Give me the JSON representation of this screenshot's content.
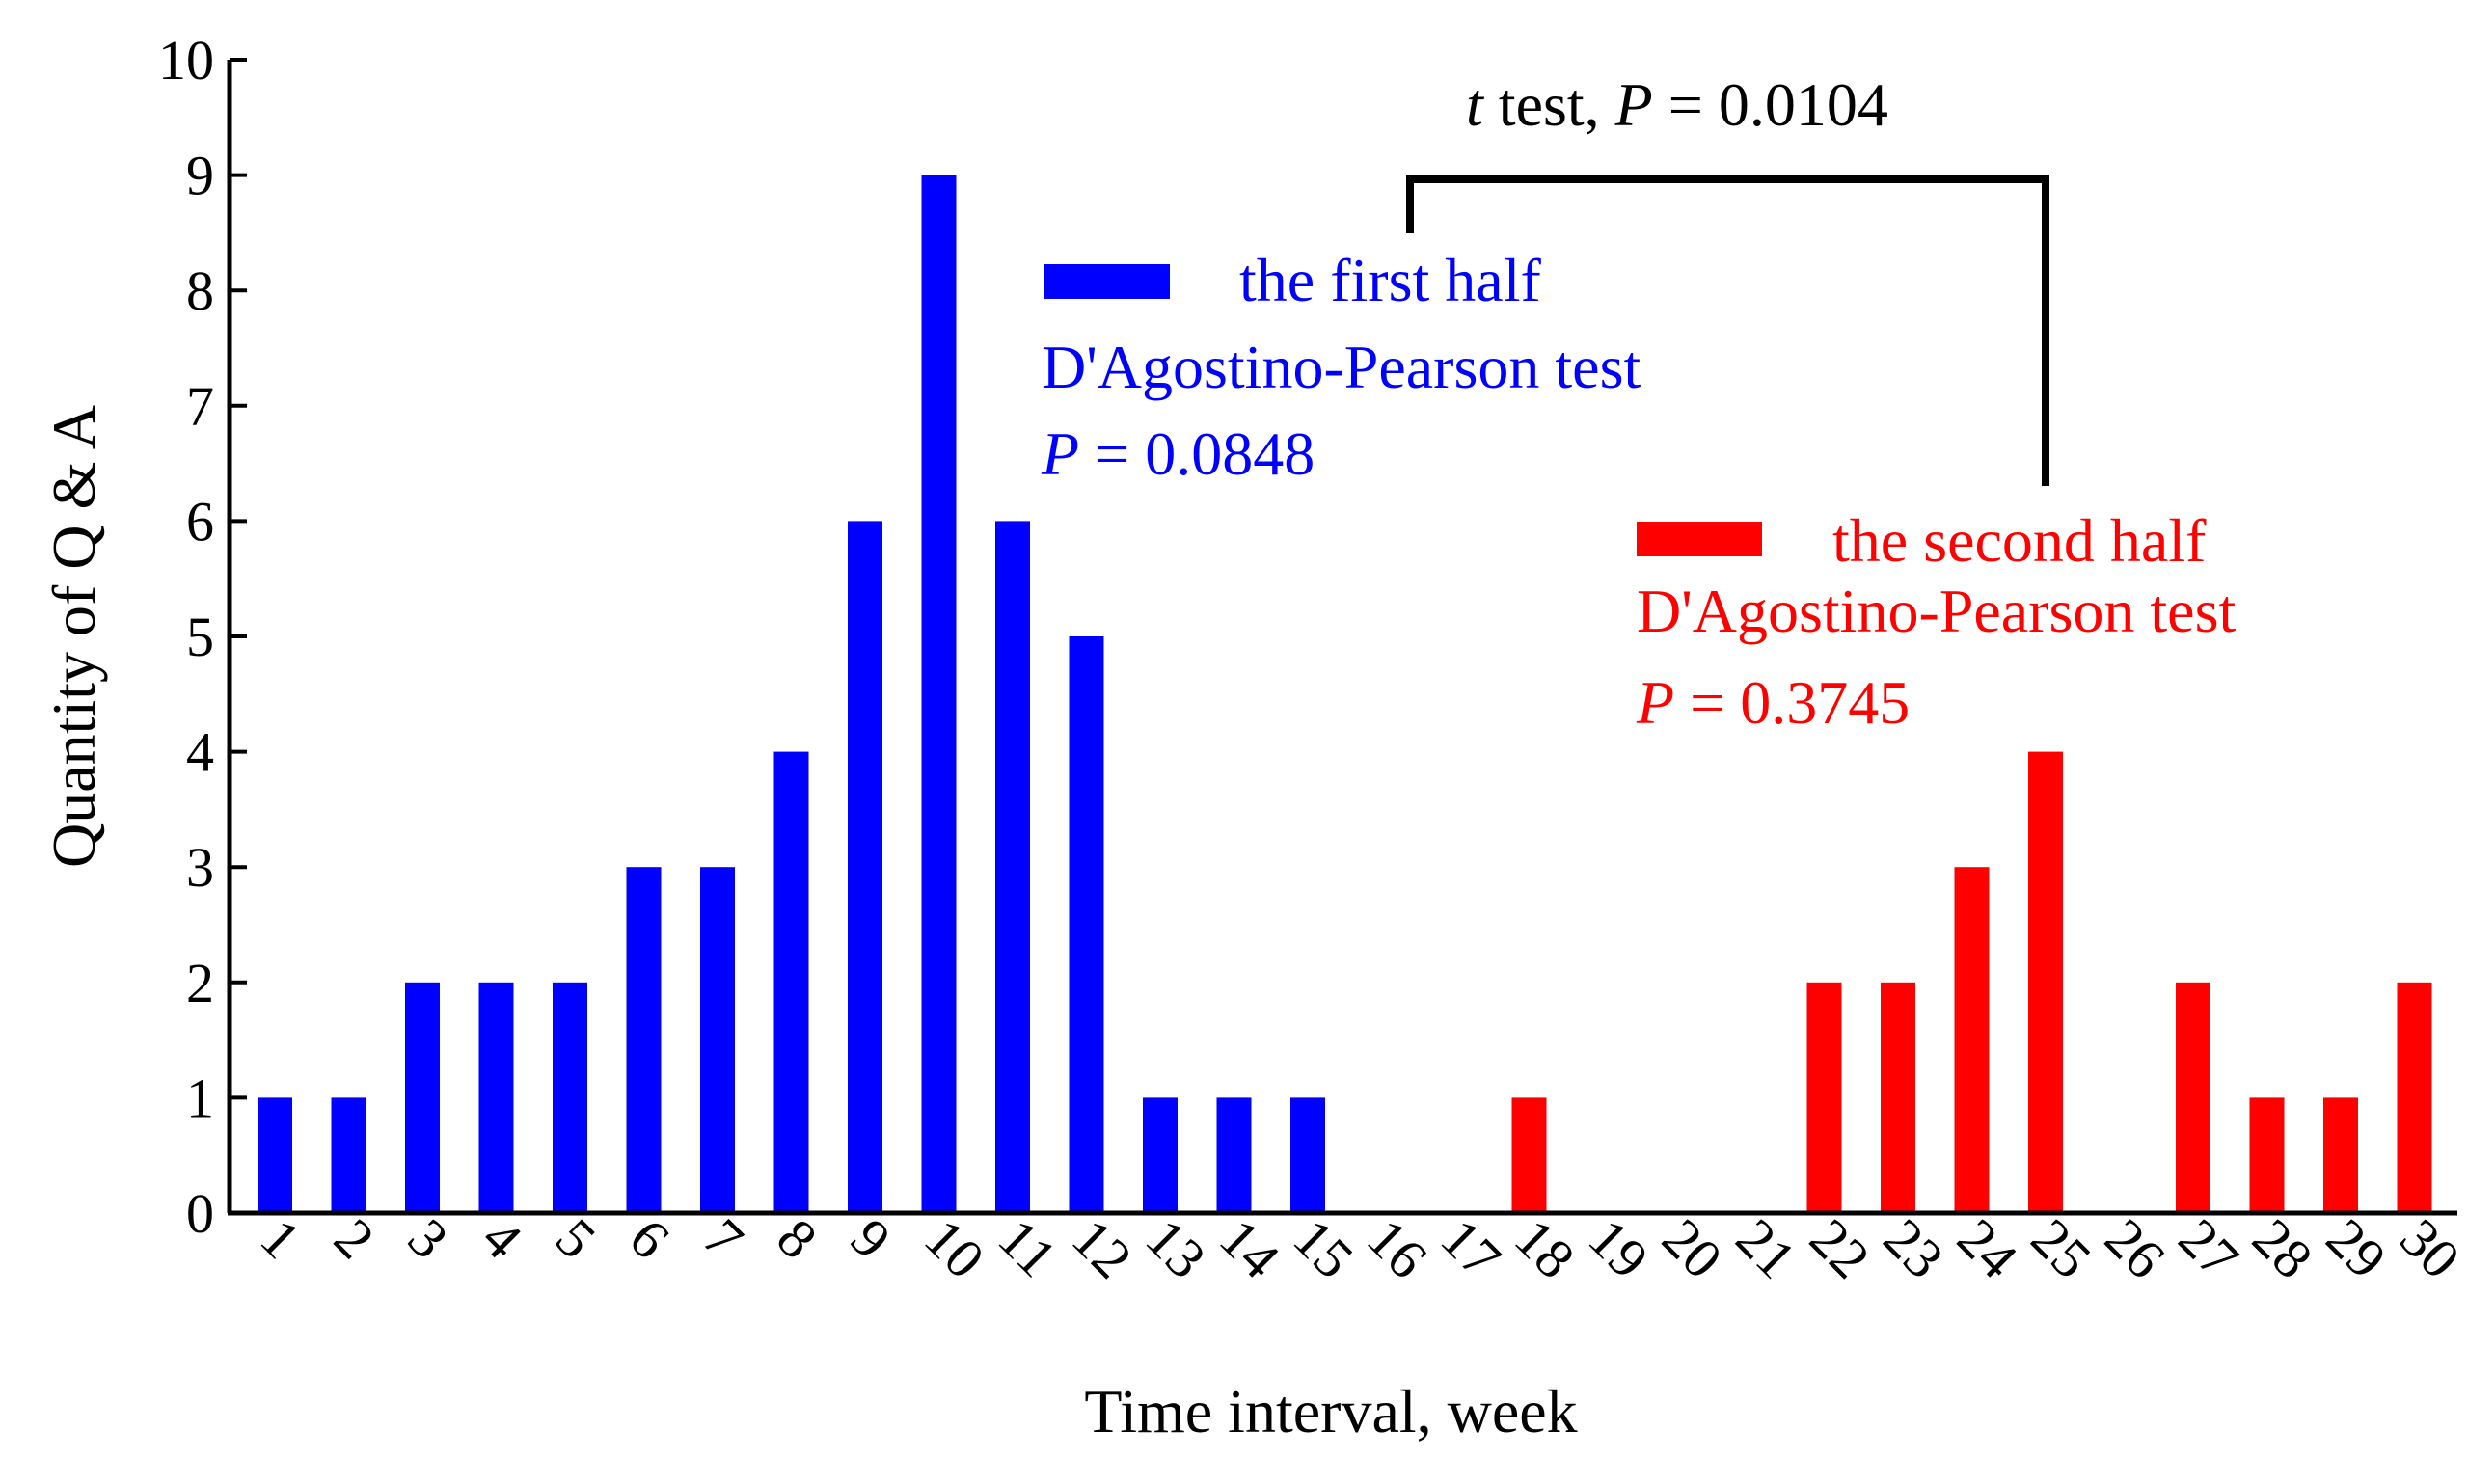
{
  "chart_data": {
    "type": "bar",
    "title": "",
    "xlabel": "Time interval, week",
    "ylabel": "Quantity of Q & A",
    "ylim": [
      0,
      10
    ],
    "yticks": [
      "0",
      "1",
      "2",
      "3",
      "4",
      "5",
      "6",
      "7",
      "8",
      "9",
      "10"
    ],
    "categories": [
      "1",
      "2",
      "3",
      "4",
      "5",
      "6",
      "7",
      "8",
      "9",
      "10",
      "11",
      "12",
      "13",
      "14",
      "15",
      "16",
      "17",
      "18",
      "19",
      "20",
      "21",
      "22",
      "23",
      "24",
      "25",
      "26",
      "27",
      "28",
      "29",
      "30"
    ],
    "series": [
      {
        "name": "the first half",
        "color": "#0000ff",
        "values": [
          1,
          1,
          2,
          2,
          2,
          3,
          3,
          4,
          6,
          9,
          6,
          5,
          1,
          1,
          1,
          0,
          0,
          0,
          0,
          0,
          0,
          0,
          0,
          0,
          0,
          0,
          0,
          0,
          0,
          0
        ]
      },
      {
        "name": "the second half",
        "color": "#ff0000",
        "values": [
          0,
          0,
          0,
          0,
          0,
          0,
          0,
          0,
          0,
          0,
          0,
          0,
          0,
          0,
          0,
          0,
          0,
          1,
          0,
          0,
          0,
          2,
          2,
          3,
          4,
          0,
          2,
          1,
          1,
          2
        ]
      }
    ],
    "annotations": {
      "first_test_name": "D'Agostino-Pearson test",
      "first_p_label": "P",
      "first_p_value": " = 0.0848",
      "second_test_name": "D'Agostino-Pearson test",
      "second_p_label": "P",
      "second_p_value": " = 0.3745",
      "ttest_t": "t",
      "ttest_mid": " test, ",
      "ttest_p_label": "P",
      "ttest_p_value": " = 0.0104"
    }
  }
}
